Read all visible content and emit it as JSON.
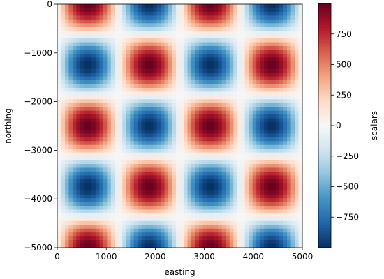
{
  "chart_data": {
    "type": "heatmap",
    "title": "",
    "xlabel": "easting",
    "ylabel": "northing",
    "x_range": [
      0,
      5000
    ],
    "y_range": [
      -5000,
      0
    ],
    "x_ticks": [
      0,
      1000,
      2000,
      3000,
      4000,
      5000
    ],
    "x_tick_labels": [
      "0",
      "1000",
      "2000",
      "3000",
      "4000",
      "5000"
    ],
    "y_ticks": [
      0,
      -1000,
      -2000,
      -3000,
      -4000,
      -5000
    ],
    "y_tick_labels": [
      "0",
      "−1000",
      "−2000",
      "−3000",
      "−4000",
      "−5000"
    ],
    "grid": {
      "nx": 64,
      "ny": 64
    },
    "field": {
      "form": "amplitude*sin(2*pi*easting/period_x)*cos(2*pi*northing/period_y)",
      "amplitude": 1000,
      "period_x": 2500,
      "period_y": 2500
    },
    "colormap": "RdBu_r",
    "colorbar": {
      "label": "scalars",
      "range": [
        -1000,
        1000
      ],
      "ticks": [
        750,
        500,
        250,
        0,
        -250,
        -500,
        -750
      ],
      "tick_labels": [
        "750",
        "500",
        "250",
        "0",
        "−250",
        "−500",
        "−750"
      ]
    },
    "grid_lines": false
  }
}
